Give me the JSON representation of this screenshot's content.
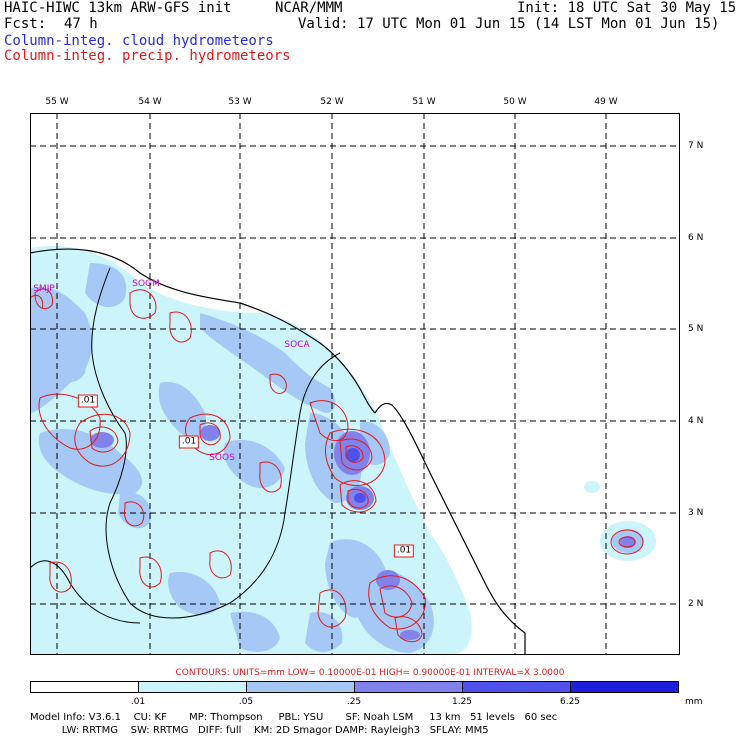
{
  "header": {
    "title_left": "HAIC-HIWC 13km ARW-GFS init",
    "title_org": "NCAR/MMM",
    "init": "Init: 18 UTC Sat 30 May 15",
    "fcst_label": "Fcst:",
    "fcst_value": "47 h",
    "valid": "Valid: 17 UTC Mon 01 Jun 15 (14 LST Mon 01 Jun 15)",
    "field_cloud": "Column-integ. cloud hydrometeors",
    "field_precip": "Column-integ. precip. hydrometeors"
  },
  "map": {
    "lon_labels": [
      "55 W",
      "54 W",
      "53 W",
      "52 W",
      "51 W",
      "50 W",
      "49 W"
    ],
    "lat_labels": [
      "7 N",
      "6 N",
      "5 N",
      "4 N",
      "3 N",
      "2 N"
    ],
    "stations": [
      "SMJP",
      "SOGM",
      "SOCA",
      "SOOS"
    ],
    "contour_labels": [
      ".01",
      ".01",
      ".01"
    ]
  },
  "contours_info": "CONTOURS:  UNITS=mm  LOW= 0.10000E-01  HIGH= 0.90000E-01  INTERVAL=X  3.0000",
  "colorbar": {
    "colors": [
      "#ffffff",
      "#ccf4fb",
      "#a6c8f6",
      "#8282ec",
      "#5050ec",
      "#1e1edc"
    ],
    "ticks": [
      ".01",
      ".05",
      ".25",
      "1.25",
      "6.25"
    ],
    "unit": "mm"
  },
  "footer": {
    "line1": "Model Info: V3.6.1    CU: KF       MP: Thompson     PBL: YSU       SF: Noah LSM     13 km   51 levels   60 sec",
    "line2": "          LW: RRTMG    SW: RRTMG   DIFF: full    KM: 2D Smagor DAMP: Rayleigh3   SFLAY: MM5"
  }
}
